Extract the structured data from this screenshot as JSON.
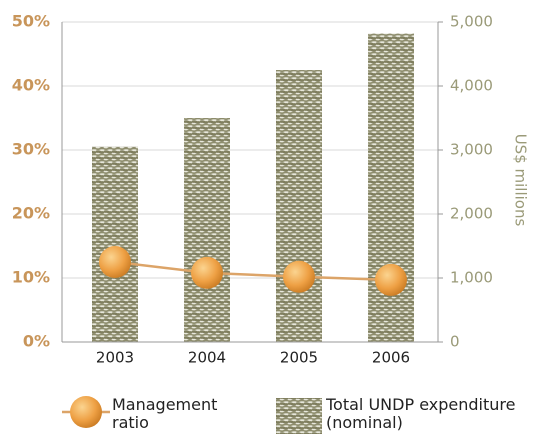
{
  "chart_data": {
    "type": "bar_line",
    "categories": [
      "2003",
      "2004",
      "2005",
      "2006"
    ],
    "series": [
      {
        "name": "Total UNDP expenditure (nominal)",
        "type": "bar",
        "axis": "y2",
        "color": "#7f7e5e",
        "values": [
          3050,
          3500,
          4250,
          4820
        ]
      },
      {
        "name": "Management ratio",
        "type": "line",
        "axis": "y",
        "color": "#dca468",
        "values": [
          12.5,
          10.8,
          10.2,
          9.7
        ]
      }
    ],
    "ylim": [
      0,
      50
    ],
    "yticks": [
      {
        "value": 0,
        "label": "0%"
      },
      {
        "value": 10,
        "label": "10%"
      },
      {
        "value": 20,
        "label": "20%"
      },
      {
        "value": 30,
        "label": "30%"
      },
      {
        "value": 40,
        "label": "40%"
      },
      {
        "value": 50,
        "label": "50%"
      }
    ],
    "y2lim": [
      0,
      5000
    ],
    "y2ticks": [
      0,
      {
        "value": 1000,
        "label": "1,000"
      },
      {
        "value": 2000,
        "label": "2,000"
      },
      {
        "value": 3000,
        "label": "3,000"
      },
      {
        "value": 4000,
        "label": "4,000"
      },
      {
        "value": 5000,
        "label": "5,000"
      }
    ],
    "y2label": "US$ millions",
    "grid": true
  }
}
